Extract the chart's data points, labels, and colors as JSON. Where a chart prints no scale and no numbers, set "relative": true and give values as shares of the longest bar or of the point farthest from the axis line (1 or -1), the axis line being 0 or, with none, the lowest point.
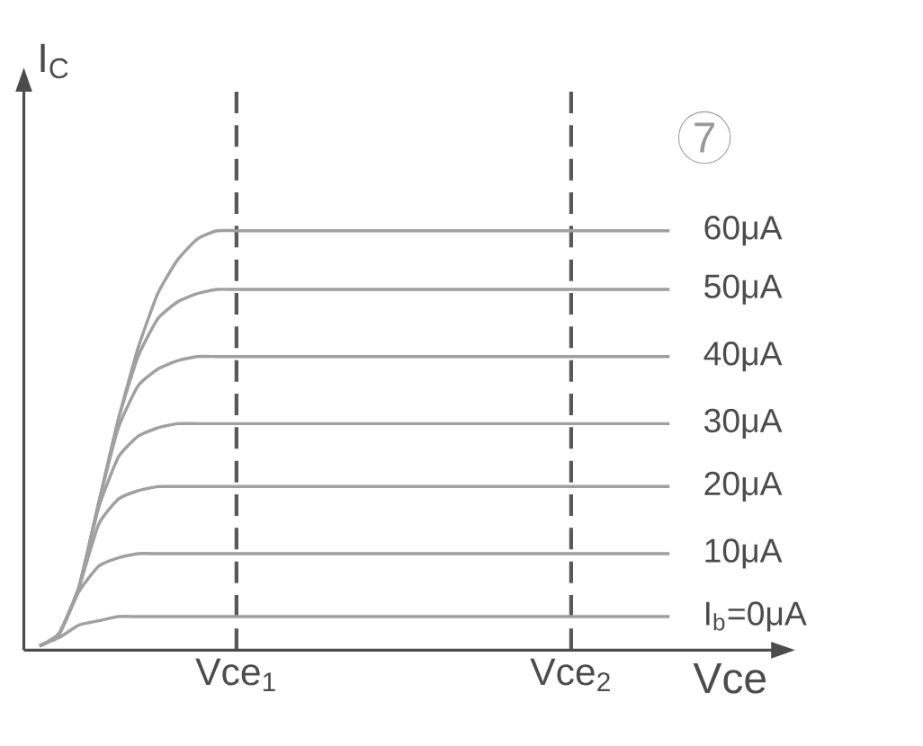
{
  "chart_data": {
    "type": "line",
    "relative": true,
    "xlabel": "Vce",
    "ylabel": "I$_{C}$",
    "categories": [
      null,
      null,
      null,
      null,
      null,
      null,
      null,
      null,
      null,
      null,
      "Vce$_{1}$",
      null,
      null,
      null,
      null,
      null,
      null,
      null,
      null,
      null,
      null,
      null,
      null,
      null,
      null,
      null,
      null,
      "Vce$_{2}$",
      null,
      null,
      null,
      null,
      null
    ],
    "series": [
      {
        "name": "60μA",
        "color": "#a0a0a0",
        "values": [
          0.01,
          0.04,
          0.15,
          0.35,
          0.55,
          0.72,
          0.85,
          0.93,
          0.98,
          1,
          1,
          1,
          1,
          1,
          1,
          1,
          1,
          1,
          1,
          1,
          1,
          1,
          1,
          1,
          1,
          1,
          1,
          1,
          1,
          1,
          1,
          1,
          1
        ]
      },
      {
        "name": "50μA",
        "color": "#a0a0a0",
        "values": [
          0.01,
          0.04,
          0.15,
          0.35,
          0.55,
          0.7,
          0.79,
          0.83,
          0.85,
          0.86,
          0.86,
          0.86,
          0.86,
          0.86,
          0.86,
          0.86,
          0.86,
          0.86,
          0.86,
          0.86,
          0.86,
          0.86,
          0.86,
          0.86,
          0.86,
          0.86,
          0.86,
          0.86,
          0.86,
          0.86,
          0.86,
          0.86,
          0.86
        ]
      },
      {
        "name": "40μA",
        "color": "#a0a0a0",
        "values": [
          0.01,
          0.04,
          0.15,
          0.35,
          0.53,
          0.63,
          0.67,
          0.69,
          0.7,
          0.7,
          0.7,
          0.7,
          0.7,
          0.7,
          0.7,
          0.7,
          0.7,
          0.7,
          0.7,
          0.7,
          0.7,
          0.7,
          0.7,
          0.7,
          0.7,
          0.7,
          0.7,
          0.7,
          0.7,
          0.7,
          0.7,
          0.7,
          0.7
        ]
      },
      {
        "name": "30μA",
        "color": "#a0a0a0",
        "values": [
          0.01,
          0.04,
          0.15,
          0.34,
          0.46,
          0.51,
          0.53,
          0.54,
          0.54,
          0.54,
          0.54,
          0.54,
          0.54,
          0.54,
          0.54,
          0.54,
          0.54,
          0.54,
          0.54,
          0.54,
          0.54,
          0.54,
          0.54,
          0.54,
          0.54,
          0.54,
          0.54,
          0.54,
          0.54,
          0.54,
          0.54,
          0.54,
          0.54
        ]
      },
      {
        "name": "20μA",
        "color": "#a0a0a0",
        "values": [
          0.01,
          0.04,
          0.15,
          0.3,
          0.36,
          0.38,
          0.39,
          0.39,
          0.39,
          0.39,
          0.39,
          0.39,
          0.39,
          0.39,
          0.39,
          0.39,
          0.39,
          0.39,
          0.39,
          0.39,
          0.39,
          0.39,
          0.39,
          0.39,
          0.39,
          0.39,
          0.39,
          0.39,
          0.39,
          0.39,
          0.39,
          0.39,
          0.39
        ]
      },
      {
        "name": "10μA",
        "color": "#a0a0a0",
        "values": [
          0.01,
          0.04,
          0.14,
          0.2,
          0.22,
          0.23,
          0.23,
          0.23,
          0.23,
          0.23,
          0.23,
          0.23,
          0.23,
          0.23,
          0.23,
          0.23,
          0.23,
          0.23,
          0.23,
          0.23,
          0.23,
          0.23,
          0.23,
          0.23,
          0.23,
          0.23,
          0.23,
          0.23,
          0.23,
          0.23,
          0.23,
          0.23,
          0.23
        ]
      },
      {
        "name": "I$_{b}$=0μA",
        "color": "#a0a0a0",
        "values": [
          0.01,
          0.03,
          0.06,
          0.07,
          0.08,
          0.08,
          0.08,
          0.08,
          0.08,
          0.08,
          0.08,
          0.08,
          0.08,
          0.08,
          0.08,
          0.08,
          0.08,
          0.08,
          0.08,
          0.08,
          0.08,
          0.08,
          0.08,
          0.08,
          0.08,
          0.08,
          0.08,
          0.08,
          0.08,
          0.08,
          0.08,
          0.08,
          0.08
        ]
      }
    ],
    "annotations": [
      "7"
    ],
    "grid": "x",
    "marker": "none",
    "line_style": "solid"
  }
}
